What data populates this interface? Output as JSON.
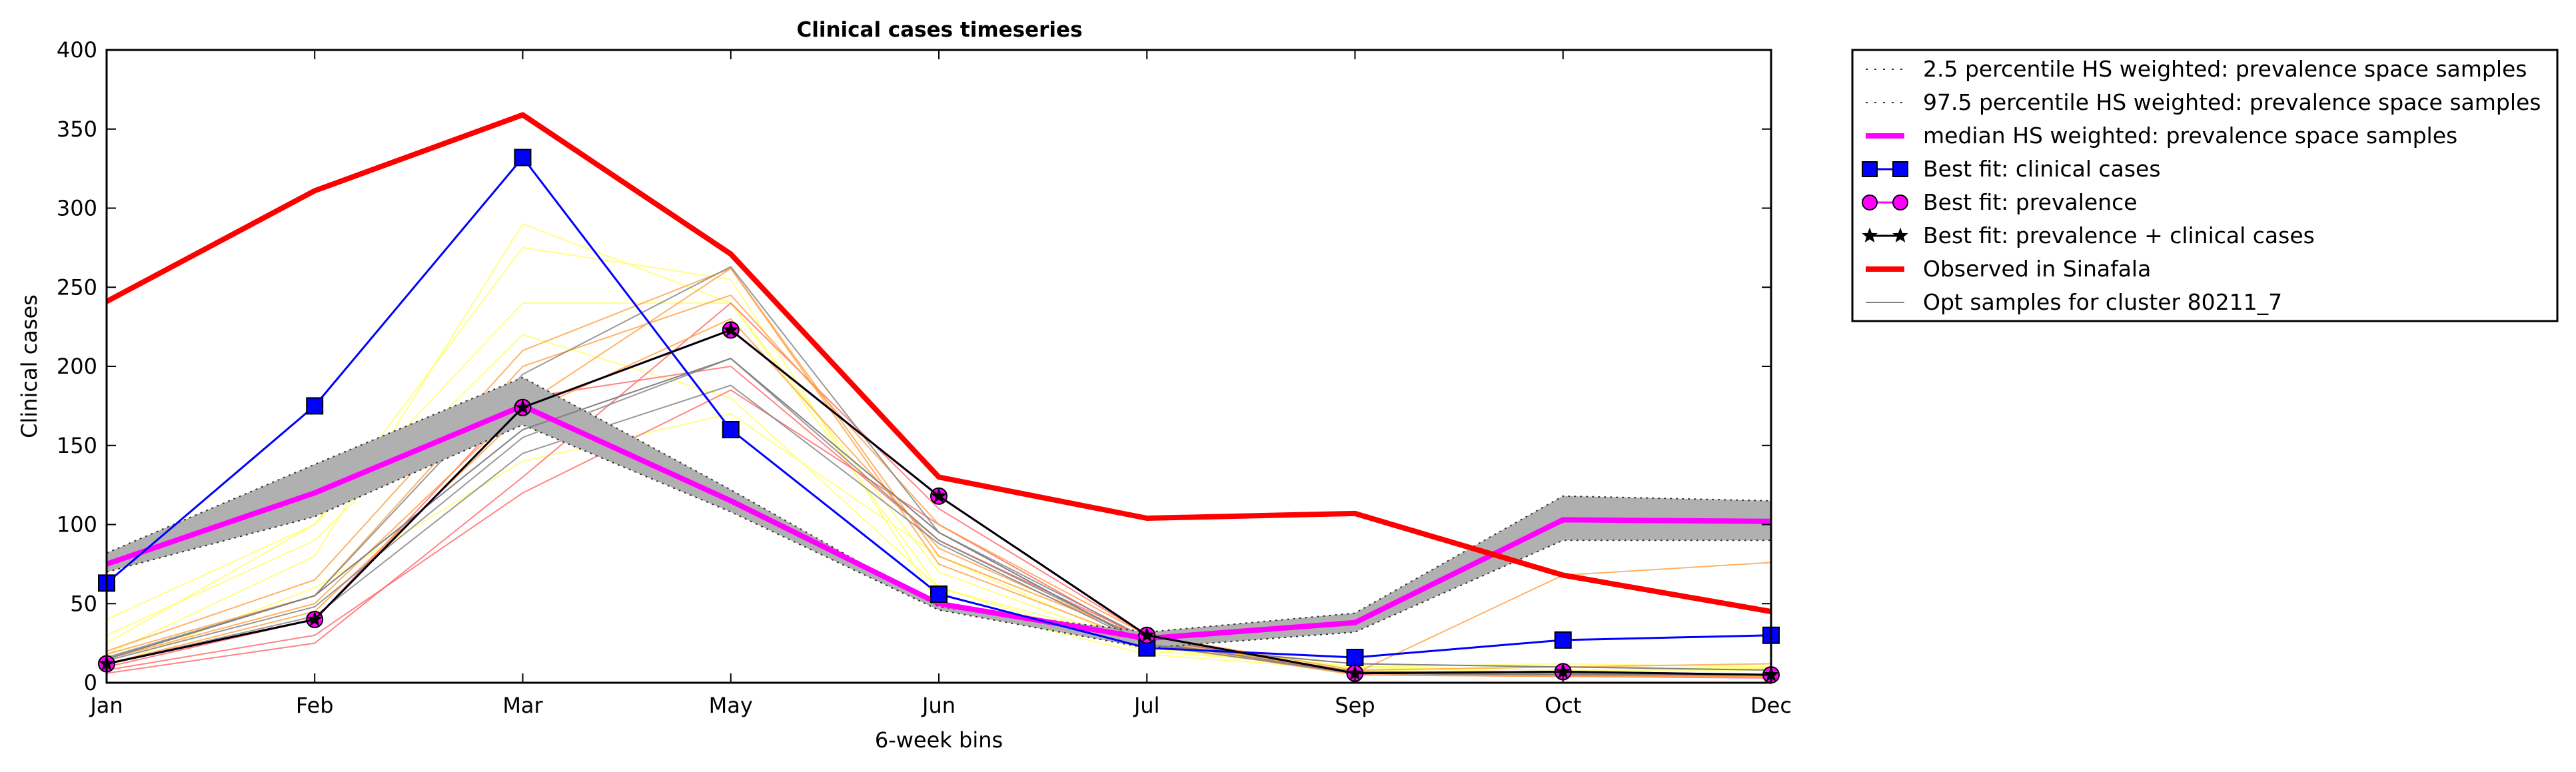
{
  "chart_data": {
    "type": "line",
    "title": "Clinical cases timeseries",
    "xlabel": "6-week bins",
    "ylabel": "Clinical cases",
    "categories": [
      "Jan",
      "Feb",
      "Mar",
      "May",
      "Jun",
      "Jul",
      "Sep",
      "Oct",
      "Dec"
    ],
    "ylim": [
      0,
      400
    ],
    "yticks": [
      "0",
      "50",
      "100",
      "150",
      "200",
      "250",
      "300",
      "350",
      "400"
    ],
    "grid": false,
    "legend_placement": "outside-right",
    "band": {
      "lower_name": "2.5 percentile HS weighted: prevalence space samples",
      "upper_name": "97.5 percentile HS weighted: prevalence space samples",
      "lower": [
        70,
        105,
        163,
        108,
        46,
        22,
        32,
        90,
        90
      ],
      "upper": [
        82,
        138,
        193,
        122,
        48,
        32,
        44,
        118,
        115
      ],
      "color": "#b0b0b0"
    },
    "series": [
      {
        "name": "median HS weighted: prevalence space samples",
        "values": [
          75,
          120,
          175,
          115,
          50,
          28,
          38,
          103,
          102
        ],
        "color": "#ff00ff",
        "marker": "none",
        "style": "solid"
      },
      {
        "name": "Best fit: clinical cases",
        "values": [
          63,
          175,
          332,
          160,
          56,
          22,
          16,
          27,
          30
        ],
        "color": "#0000ff",
        "marker": "square",
        "style": "solid"
      },
      {
        "name": "Best fit: prevalence",
        "values": [
          12,
          40,
          174,
          223,
          118,
          30,
          6,
          7,
          5
        ],
        "color": "#ff00ff",
        "marker": "circle",
        "style": "solid"
      },
      {
        "name": "Best fit: prevalence + clinical cases",
        "values": [
          12,
          40,
          174,
          223,
          118,
          30,
          6,
          7,
          5
        ],
        "color": "#000000",
        "marker": "star",
        "style": "solid"
      },
      {
        "name": "Observed in Sinafala",
        "values": [
          241,
          311,
          359,
          271,
          130,
          104,
          107,
          68,
          45
        ],
        "color": "#ff0000",
        "marker": "none",
        "style": "solid"
      },
      {
        "name": "Opt samples for cluster 80211_7",
        "values": [
          15,
          55,
          160,
          205,
          95,
          24,
          12,
          10,
          8
        ],
        "color": "#808080",
        "marker": "none",
        "style": "thin"
      }
    ],
    "samples": [
      {
        "values": [
          18,
          80,
          290,
          240,
          60,
          20,
          10,
          12,
          10
        ],
        "color": "#ffff66"
      },
      {
        "values": [
          25,
          100,
          275,
          255,
          50,
          18,
          8,
          10,
          9
        ],
        "color": "#ffff66"
      },
      {
        "values": [
          40,
          100,
          240,
          240,
          70,
          22,
          10,
          8,
          8
        ],
        "color": "#ffff66"
      },
      {
        "values": [
          30,
          90,
          220,
          180,
          60,
          25,
          10,
          6,
          5
        ],
        "color": "#ffff66"
      },
      {
        "values": [
          10,
          60,
          140,
          170,
          80,
          22,
          8,
          6,
          5
        ],
        "color": "#ffff66"
      },
      {
        "values": [
          8,
          30,
          120,
          185,
          100,
          26,
          6,
          5,
          4
        ],
        "color": "#ff6666"
      },
      {
        "values": [
          6,
          25,
          130,
          240,
          110,
          30,
          5,
          4,
          3
        ],
        "color": "#ff6666"
      },
      {
        "values": [
          10,
          40,
          180,
          200,
          90,
          28,
          7,
          6,
          5
        ],
        "color": "#ff6666"
      },
      {
        "values": [
          15,
          50,
          175,
          262,
          80,
          28,
          6,
          5,
          4
        ],
        "color": "#ffa040"
      },
      {
        "values": [
          20,
          65,
          210,
          262,
          75,
          25,
          5,
          4,
          4
        ],
        "color": "#ffa040"
      },
      {
        "values": [
          12,
          45,
          170,
          230,
          85,
          27,
          6,
          68,
          76
        ],
        "color": "#ffa040"
      },
      {
        "values": [
          18,
          55,
          200,
          245,
          100,
          30,
          8,
          10,
          12
        ],
        "color": "#ffa040"
      },
      {
        "values": [
          14,
          48,
          155,
          205,
          90,
          26,
          6,
          5,
          5
        ],
        "color": "#808080"
      },
      {
        "values": [
          16,
          55,
          195,
          263,
          95,
          28,
          7,
          6,
          5
        ],
        "color": "#808080"
      },
      {
        "values": [
          12,
          42,
          145,
          188,
          88,
          24,
          6,
          5,
          5
        ],
        "color": "#808080"
      }
    ]
  }
}
